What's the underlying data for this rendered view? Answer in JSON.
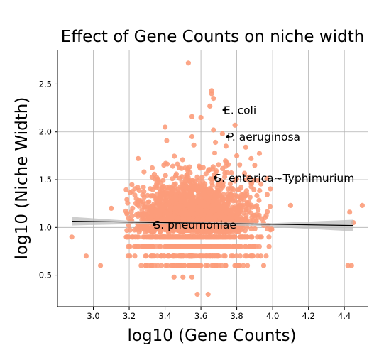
{
  "chart_data": {
    "type": "scatter",
    "title": "Effect of Gene Counts on niche width",
    "xlabel": "log10 (Gene Counts)",
    "ylabel": "log10 (Niche Width)",
    "xlim": [
      2.8,
      4.53
    ],
    "ylim": [
      0.17,
      2.86
    ],
    "x_ticks": [
      3.0,
      3.2,
      3.4,
      3.6,
      3.8,
      4.0,
      4.2,
      4.4
    ],
    "y_ticks": [
      0.5,
      1.0,
      1.5,
      2.0,
      2.5
    ],
    "grid": true,
    "point_color": "#FC9C7A",
    "regression_color": "#000000",
    "band_color": "#BDBDBD",
    "regression": {
      "x": [
        2.88,
        4.45
      ],
      "y": [
        1.065,
        1.02
      ]
    },
    "confidence_band": {
      "x": [
        2.88,
        3.2,
        3.6,
        4.0,
        4.45
      ],
      "lower": [
        1.02,
        1.035,
        1.035,
        1.005,
        0.96
      ],
      "upper": [
        1.11,
        1.07,
        1.055,
        1.045,
        1.08
      ]
    },
    "highlights": [
      {
        "label": "E. coli",
        "x": 3.73,
        "y": 2.23
      },
      {
        "label": "P. aeruginosa",
        "x": 3.75,
        "y": 1.95
      },
      {
        "label": "S. enterica~Typhimurium",
        "x": 3.68,
        "y": 1.52
      },
      {
        "label": "S. pneumoniae",
        "x": 3.34,
        "y": 1.03
      }
    ],
    "outliers": {
      "x": [
        3.53,
        3.66,
        3.66,
        3.67,
        3.65,
        3.55,
        3.6,
        3.79,
        3.67,
        3.72,
        3.8,
        3.88,
        3.9,
        3.74,
        3.4,
        3.25,
        3.55,
        3.85,
        2.88,
        2.96,
        3.04,
        3.58,
        3.64,
        4.42,
        4.44,
        4.45,
        4.43,
        4.5,
        4.1,
        3.55,
        3.5,
        3.1,
        3.45,
        3.95
      ],
      "y": [
        2.72,
        2.43,
        2.4,
        2.35,
        2.27,
        2.16,
        2.15,
        2.07,
        2.02,
        1.98,
        1.75,
        1.72,
        1.65,
        1.85,
        2.05,
        1.72,
        1.95,
        1.84,
        0.9,
        0.7,
        0.6,
        0.3,
        0.3,
        0.6,
        0.6,
        1.05,
        1.16,
        1.23,
        1.23,
        0.48,
        0.48,
        1.2,
        0.48,
        0.6
      ]
    },
    "cloud": {
      "x_range": [
        3.18,
        4.0
      ],
      "x_center": 3.57,
      "y_center": 1.05,
      "y_floor": 0.6,
      "y_step": 0.1,
      "count": 2400,
      "seed": 7
    }
  }
}
